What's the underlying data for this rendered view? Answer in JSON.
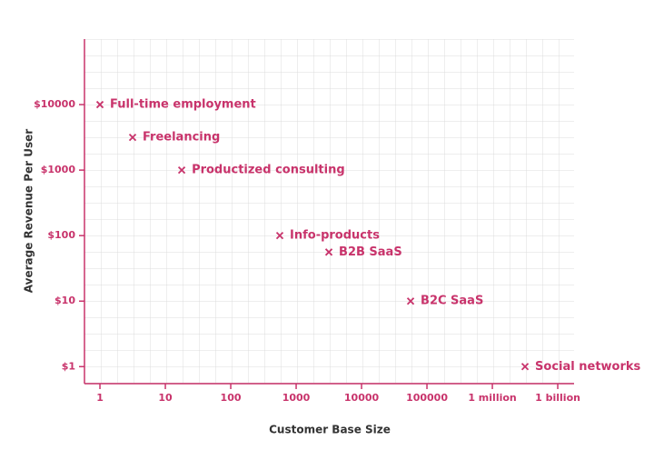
{
  "chart_data": {
    "type": "scatter",
    "xlabel": "Customer Base Size",
    "ylabel": "Average Revenue Per User",
    "labels": [
      "Full-time employment",
      "Freelancing",
      "Productized consulting",
      "Info-products",
      "B2B SaaS",
      "B2C SaaS",
      "Social networks"
    ],
    "x": [
      1,
      3.16,
      17.8,
      562,
      3162,
      56234,
      31600000
    ],
    "y": [
      10000,
      3162,
      1000,
      100,
      56,
      10,
      1
    ],
    "color": "#c8336b",
    "xscale": "log",
    "yscale": "log",
    "grid": true,
    "xlim": [
      0.58,
      5600000000
    ],
    "ylim": [
      0.55,
      100000
    ],
    "xticks": [
      1,
      10,
      100,
      1000,
      10000,
      100000,
      {
        "value": 1000000,
        "label": "1 million"
      },
      {
        "value": 1000000000,
        "label": "1 billion"
      }
    ],
    "yticks": [
      {
        "value": 1,
        "label": "$1"
      },
      {
        "value": 10,
        "label": "$10"
      },
      {
        "value": 100,
        "label": "$100"
      },
      {
        "value": 1000,
        "label": "$1000"
      },
      {
        "value": 10000,
        "label": "$10000"
      }
    ]
  }
}
